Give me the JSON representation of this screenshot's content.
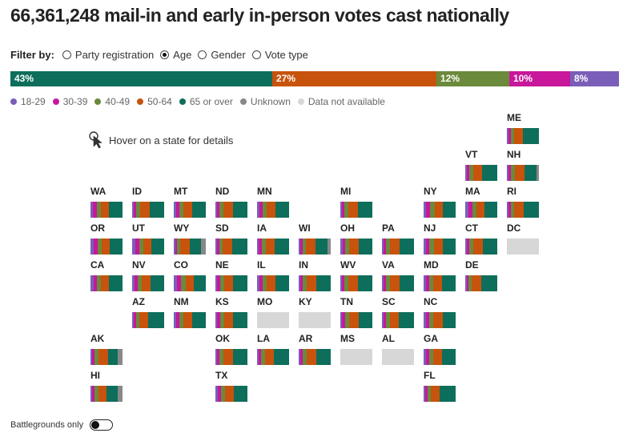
{
  "title": "66,361,248 mail-in and early in-person votes cast nationally",
  "filter": {
    "label": "Filter by:",
    "options": [
      {
        "label": "Party registration",
        "selected": false
      },
      {
        "label": "Age",
        "selected": true
      },
      {
        "label": "Gender",
        "selected": false
      },
      {
        "label": "Vote type",
        "selected": false
      }
    ]
  },
  "hover_hint": "Hover on a state for details",
  "battlegrounds_label": "Battlegrounds only",
  "colors": {
    "18-29": "#7b5eb8",
    "30-39": "#c8179b",
    "40-49": "#6b8a3c",
    "50-64": "#c8530c",
    "65 or over": "#0d6e5b",
    "Unknown": "#888888",
    "Data not available": "#d7d7d7"
  },
  "chart_data": {
    "type": "bar",
    "title": "66,361,248 mail-in and early in-person votes cast nationally",
    "national": {
      "series": [
        {
          "name": "65 or over",
          "value": 43,
          "label": "43%"
        },
        {
          "name": "50-64",
          "value": 27,
          "label": "27%"
        },
        {
          "name": "40-49",
          "value": 12,
          "label": "12%"
        },
        {
          "name": "30-39",
          "value": 10,
          "label": "10%"
        },
        {
          "name": "18-29",
          "value": 8,
          "label": "8%"
        }
      ]
    },
    "legend": [
      "18-29",
      "30-39",
      "40-49",
      "50-64",
      "65 or over",
      "Unknown",
      "Data not available"
    ],
    "states": [
      {
        "abbr": "ME",
        "grid": [
          12,
          0
        ],
        "values": {
          "18-29": 6,
          "30-39": 8,
          "40-49": 10,
          "50-64": 27,
          "65 or over": 49
        }
      },
      {
        "abbr": "VT",
        "grid": [
          11,
          1
        ],
        "values": {
          "18-29": 6,
          "30-39": 8,
          "40-49": 12,
          "50-64": 28,
          "65 or over": 46
        }
      },
      {
        "abbr": "NH",
        "grid": [
          12,
          1
        ],
        "values": {
          "18-29": 6,
          "30-39": 7,
          "40-49": 13,
          "50-64": 29,
          "65 or over": 38,
          "Unknown": 7
        }
      },
      {
        "abbr": "WA",
        "grid": [
          2,
          2
        ],
        "values": {
          "18-29": 8,
          "30-39": 12,
          "40-49": 13,
          "50-64": 26,
          "65 or over": 41
        }
      },
      {
        "abbr": "ID",
        "grid": [
          3,
          2
        ],
        "values": {
          "18-29": 5,
          "30-39": 8,
          "40-49": 12,
          "50-64": 30,
          "65 or over": 45
        }
      },
      {
        "abbr": "MT",
        "grid": [
          4,
          2
        ],
        "values": {
          "18-29": 8,
          "30-39": 10,
          "40-49": 12,
          "50-64": 27,
          "65 or over": 43
        }
      },
      {
        "abbr": "ND",
        "grid": [
          5,
          2
        ],
        "values": {
          "18-29": 5,
          "30-39": 8,
          "40-49": 12,
          "50-64": 30,
          "65 or over": 45
        }
      },
      {
        "abbr": "MN",
        "grid": [
          6,
          2
        ],
        "values": {
          "18-29": 7,
          "30-39": 10,
          "40-49": 13,
          "50-64": 28,
          "65 or over": 42
        }
      },
      {
        "abbr": "MI",
        "grid": [
          8,
          2
        ],
        "values": {
          "18-29": 6,
          "30-39": 8,
          "40-49": 12,
          "50-64": 30,
          "65 or over": 44
        }
      },
      {
        "abbr": "NY",
        "grid": [
          10,
          2
        ],
        "values": {
          "18-29": 8,
          "30-39": 12,
          "40-49": 14,
          "50-64": 26,
          "65 or over": 40
        }
      },
      {
        "abbr": "MA",
        "grid": [
          11,
          2
        ],
        "values": {
          "18-29": 9,
          "30-39": 12,
          "40-49": 13,
          "50-64": 26,
          "65 or over": 40
        }
      },
      {
        "abbr": "RI",
        "grid": [
          12,
          2
        ],
        "values": {
          "18-29": 5,
          "30-39": 7,
          "40-49": 10,
          "50-64": 30,
          "65 or over": 48
        }
      },
      {
        "abbr": "OR",
        "grid": [
          2,
          3
        ],
        "values": {
          "18-29": 10,
          "30-39": 12,
          "40-49": 12,
          "50-64": 24,
          "65 or over": 42
        }
      },
      {
        "abbr": "UT",
        "grid": [
          3,
          3
        ],
        "values": {
          "18-29": 10,
          "30-39": 12,
          "40-49": 13,
          "50-64": 25,
          "65 or over": 40
        }
      },
      {
        "abbr": "WY",
        "grid": [
          4,
          3
        ],
        "values": {
          "18-29": 5,
          "30-39": 6,
          "40-49": 10,
          "50-64": 30,
          "65 or over": 34,
          "Unknown": 15
        }
      },
      {
        "abbr": "SD",
        "grid": [
          5,
          3
        ],
        "values": {
          "18-29": 5,
          "30-39": 7,
          "40-49": 10,
          "50-64": 30,
          "65 or over": 48
        }
      },
      {
        "abbr": "IA",
        "grid": [
          6,
          3
        ],
        "values": {
          "18-29": 6,
          "30-39": 9,
          "40-49": 12,
          "50-64": 28,
          "65 or over": 45
        }
      },
      {
        "abbr": "WI",
        "grid": [
          7,
          3
        ],
        "values": {
          "18-29": 5,
          "30-39": 7,
          "40-49": 10,
          "50-64": 30,
          "65 or over": 38,
          "Unknown": 10
        }
      },
      {
        "abbr": "OH",
        "grid": [
          8,
          3
        ],
        "values": {
          "18-29": 7,
          "30-39": 8,
          "40-49": 12,
          "50-64": 30,
          "65 or over": 43
        }
      },
      {
        "abbr": "PA",
        "grid": [
          9,
          3
        ],
        "values": {
          "18-29": 6,
          "30-39": 8,
          "40-49": 12,
          "50-64": 30,
          "65 or over": 44
        }
      },
      {
        "abbr": "NJ",
        "grid": [
          10,
          3
        ],
        "values": {
          "18-29": 8,
          "30-39": 10,
          "40-49": 14,
          "50-64": 28,
          "65 or over": 40
        }
      },
      {
        "abbr": "CT",
        "grid": [
          11,
          3
        ],
        "values": {
          "18-29": 6,
          "30-39": 8,
          "40-49": 12,
          "50-64": 30,
          "65 or over": 44
        }
      },
      {
        "abbr": "DC",
        "grid": [
          12,
          3
        ],
        "values": {
          "Data not available": 100
        }
      },
      {
        "abbr": "CA",
        "grid": [
          2,
          4
        ],
        "values": {
          "18-29": 10,
          "30-39": 11,
          "40-49": 13,
          "50-64": 26,
          "65 or over": 40
        }
      },
      {
        "abbr": "NV",
        "grid": [
          3,
          4
        ],
        "values": {
          "18-29": 7,
          "30-39": 9,
          "40-49": 12,
          "50-64": 28,
          "65 or over": 44
        }
      },
      {
        "abbr": "CO",
        "grid": [
          4,
          4
        ],
        "values": {
          "18-29": 9,
          "30-39": 12,
          "40-49": 14,
          "50-64": 25,
          "65 or over": 40
        }
      },
      {
        "abbr": "NE",
        "grid": [
          5,
          4
        ],
        "values": {
          "18-29": 6,
          "30-39": 9,
          "40-49": 12,
          "50-64": 28,
          "65 or over": 45
        }
      },
      {
        "abbr": "IL",
        "grid": [
          6,
          4
        ],
        "values": {
          "18-29": 7,
          "30-39": 10,
          "40-49": 13,
          "50-64": 28,
          "65 or over": 42
        }
      },
      {
        "abbr": "IN",
        "grid": [
          7,
          4
        ],
        "values": {
          "18-29": 6,
          "30-39": 8,
          "40-49": 12,
          "50-64": 30,
          "65 or over": 44
        }
      },
      {
        "abbr": "WV",
        "grid": [
          8,
          4
        ],
        "values": {
          "18-29": 5,
          "30-39": 8,
          "40-49": 12,
          "50-64": 30,
          "65 or over": 45
        }
      },
      {
        "abbr": "VA",
        "grid": [
          9,
          4
        ],
        "values": {
          "18-29": 6,
          "30-39": 8,
          "40-49": 12,
          "50-64": 30,
          "65 or over": 44
        }
      },
      {
        "abbr": "MD",
        "grid": [
          10,
          4
        ],
        "values": {
          "18-29": 7,
          "30-39": 9,
          "40-49": 13,
          "50-64": 28,
          "65 or over": 43
        }
      },
      {
        "abbr": "DE",
        "grid": [
          11,
          4
        ],
        "values": {
          "18-29": 4,
          "30-39": 6,
          "40-49": 10,
          "50-64": 30,
          "65 or over": 50
        }
      },
      {
        "abbr": "AZ",
        "grid": [
          3,
          5
        ],
        "values": {
          "18-29": 6,
          "30-39": 8,
          "40-49": 11,
          "50-64": 27,
          "65 or over": 48
        }
      },
      {
        "abbr": "NM",
        "grid": [
          4,
          5
        ],
        "values": {
          "18-29": 7,
          "30-39": 9,
          "40-49": 12,
          "50-64": 28,
          "65 or over": 44
        }
      },
      {
        "abbr": "KS",
        "grid": [
          5,
          5
        ],
        "values": {
          "18-29": 6,
          "30-39": 9,
          "40-49": 12,
          "50-64": 28,
          "65 or over": 45
        }
      },
      {
        "abbr": "MO",
        "grid": [
          6,
          5
        ],
        "values": {
          "Data not available": 100
        }
      },
      {
        "abbr": "KY",
        "grid": [
          7,
          5
        ],
        "values": {
          "Data not available": 100
        }
      },
      {
        "abbr": "TN",
        "grid": [
          8,
          5
        ],
        "values": {
          "18-29": 6,
          "30-39": 9,
          "40-49": 12,
          "50-64": 29,
          "65 or over": 44
        }
      },
      {
        "abbr": "SC",
        "grid": [
          9,
          5
        ],
        "values": {
          "18-29": 6,
          "30-39": 8,
          "40-49": 12,
          "50-64": 28,
          "65 or over": 46
        }
      },
      {
        "abbr": "NC",
        "grid": [
          10,
          5
        ],
        "values": {
          "18-29": 7,
          "30-39": 9,
          "40-49": 13,
          "50-64": 29,
          "65 or over": 42
        }
      },
      {
        "abbr": "AK",
        "grid": [
          2,
          6
        ],
        "values": {
          "18-29": 6,
          "30-39": 8,
          "40-49": 12,
          "50-64": 30,
          "65 or over": 30,
          "Unknown": 14
        }
      },
      {
        "abbr": "OK",
        "grid": [
          5,
          6
        ],
        "values": {
          "18-29": 5,
          "30-39": 7,
          "40-49": 12,
          "50-64": 30,
          "65 or over": 46
        }
      },
      {
        "abbr": "LA",
        "grid": [
          6,
          6
        ],
        "values": {
          "18-29": 6,
          "30-39": 8,
          "40-49": 12,
          "50-64": 28,
          "65 or over": 46
        }
      },
      {
        "abbr": "AR",
        "grid": [
          7,
          6
        ],
        "values": {
          "18-29": 6,
          "30-39": 8,
          "40-49": 12,
          "50-64": 29,
          "65 or over": 45
        }
      },
      {
        "abbr": "MS",
        "grid": [
          8,
          6
        ],
        "values": {
          "Data not available": 100
        }
      },
      {
        "abbr": "AL",
        "grid": [
          9,
          6
        ],
        "values": {
          "Data not available": 100
        }
      },
      {
        "abbr": "GA",
        "grid": [
          10,
          6
        ],
        "values": {
          "18-29": 8,
          "30-39": 10,
          "40-49": 13,
          "50-64": 27,
          "65 or over": 42
        }
      },
      {
        "abbr": "HI",
        "grid": [
          2,
          7
        ],
        "values": {
          "18-29": 6,
          "30-39": 8,
          "40-49": 12,
          "50-64": 26,
          "65 or over": 34,
          "Unknown": 14
        }
      },
      {
        "abbr": "TX",
        "grid": [
          5,
          7
        ],
        "values": {
          "18-29": 8,
          "30-39": 10,
          "40-49": 13,
          "50-64": 27,
          "65 or over": 42
        }
      },
      {
        "abbr": "FL",
        "grid": [
          10,
          7
        ],
        "values": {
          "18-29": 6,
          "30-39": 8,
          "40-49": 11,
          "50-64": 27,
          "65 or over": 48
        }
      }
    ]
  }
}
